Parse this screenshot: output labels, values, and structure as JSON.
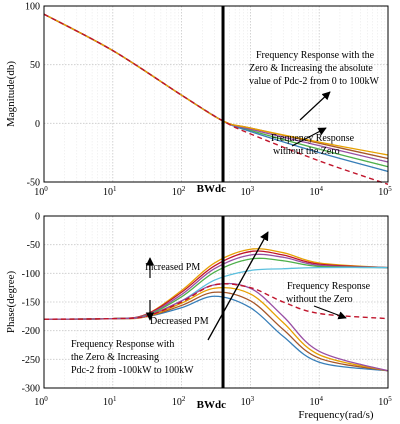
{
  "chart_data": [
    {
      "type": "line",
      "x_scale": "log",
      "xlim": [
        1,
        100000
      ],
      "ylim": [
        -50,
        100
      ],
      "ylabel": "Magnitude(db)",
      "xlabel": "",
      "grid": true,
      "xticks": [
        "10^0",
        "10^1",
        "10^2",
        "10^3",
        "10^4",
        "10^5"
      ],
      "yticks": [
        100,
        50,
        0,
        -50
      ],
      "marker_label": "BWdc",
      "marker_x": 400,
      "annotations": [
        "Frequency Response with the",
        "Zero & Increasing the absolute",
        "value of Pdc-2 from 0 to 100kW",
        "Frequency Response",
        "without the Zero"
      ],
      "series": [
        {
          "style": "solid",
          "color": "#4daf4a",
          "x": [
            1,
            10,
            100,
            400,
            1000,
            10000,
            100000
          ],
          "y": [
            93,
            62,
            24,
            2,
            -6,
            -22,
            -37
          ]
        },
        {
          "style": "solid",
          "color": "#377eb8",
          "x": [
            1,
            10,
            100,
            400,
            1000,
            10000,
            100000
          ],
          "y": [
            93,
            62,
            24,
            2,
            -7,
            -25,
            -41
          ]
        },
        {
          "style": "solid",
          "color": "#984ea3",
          "x": [
            1,
            10,
            100,
            400,
            1000,
            10000,
            100000
          ],
          "y": [
            93,
            62,
            24,
            2,
            -5,
            -19,
            -33
          ]
        },
        {
          "style": "solid",
          "color": "#a65628",
          "x": [
            1,
            10,
            100,
            400,
            1000,
            10000,
            100000
          ],
          "y": [
            93,
            62,
            24,
            2,
            -4,
            -17,
            -30
          ]
        },
        {
          "style": "solid",
          "color": "#e6a000",
          "x": [
            1,
            10,
            100,
            400,
            1000,
            10000,
            100000
          ],
          "y": [
            93,
            62,
            24,
            2,
            -4,
            -16,
            -27
          ]
        },
        {
          "style": "dashed",
          "color": "#c0142b",
          "x": [
            1,
            10,
            100,
            400,
            1000,
            10000,
            100000
          ],
          "y": [
            93,
            62,
            24,
            2,
            -9,
            -32,
            -52
          ]
        }
      ]
    },
    {
      "type": "line",
      "x_scale": "log",
      "xlim": [
        1,
        100000
      ],
      "ylim": [
        -300,
        0
      ],
      "ylabel": "Phase(degree)",
      "xlabel": "Frequency(rad/s)",
      "grid": true,
      "xticks": [
        "10^0",
        "10^1",
        "10^2",
        "10^3",
        "10^4",
        "10^5"
      ],
      "yticks": [
        0,
        -50,
        -100,
        -150,
        -200,
        -250,
        -300
      ],
      "marker_label": "BWdc",
      "marker_x": 400,
      "annotations": [
        "Increased PM",
        "Decreased PM",
        "Frequency Response",
        "without the Zero",
        "Frequency Response with",
        "the Zero & Increasing",
        "Pdc-2 from -100kW to 100kW"
      ],
      "series": [
        {
          "style": "solid",
          "color": "#e6a000",
          "x": [
            1,
            10,
            30,
            100,
            300,
            1000,
            3000,
            10000,
            100000
          ],
          "y": [
            -180,
            -179,
            -172,
            -130,
            -82,
            -58,
            -64,
            -82,
            -90
          ]
        },
        {
          "style": "solid",
          "color": "#c0142b",
          "x": [
            1,
            10,
            30,
            100,
            300,
            1000,
            3000,
            10000,
            100000
          ],
          "y": [
            -180,
            -179,
            -172,
            -133,
            -87,
            -62,
            -68,
            -84,
            -90
          ]
        },
        {
          "style": "solid",
          "color": "#984ea3",
          "x": [
            1,
            10,
            30,
            100,
            300,
            1000,
            3000,
            10000,
            100000
          ],
          "y": [
            -180,
            -179,
            -173,
            -137,
            -92,
            -68,
            -72,
            -86,
            -90
          ]
        },
        {
          "style": "solid",
          "color": "#4daf4a",
          "x": [
            1,
            10,
            30,
            100,
            300,
            1000,
            3000,
            10000,
            100000
          ],
          "y": [
            -180,
            -179,
            -174,
            -141,
            -98,
            -75,
            -78,
            -88,
            -90
          ]
        },
        {
          "style": "solid",
          "color": "#5bc0de",
          "x": [
            1,
            10,
            30,
            100,
            300,
            1000,
            3000,
            10000,
            100000
          ],
          "y": [
            -180,
            -179,
            -175,
            -148,
            -112,
            -95,
            -92,
            -90,
            -90
          ]
        },
        {
          "style": "solid",
          "color": "#377eb8",
          "x": [
            1,
            10,
            30,
            100,
            300,
            1000,
            3000,
            10000,
            100000
          ],
          "y": [
            -180,
            -179,
            -176,
            -160,
            -140,
            -160,
            -210,
            -255,
            -270
          ]
        },
        {
          "style": "solid",
          "color": "#a65628",
          "x": [
            1,
            10,
            30,
            100,
            300,
            1000,
            3000,
            10000,
            100000
          ],
          "y": [
            -180,
            -179,
            -176,
            -156,
            -133,
            -148,
            -198,
            -248,
            -270
          ]
        },
        {
          "style": "solid",
          "color": "#e6a000",
          "x": [
            1,
            10,
            30,
            100,
            300,
            1000,
            3000,
            10000,
            100000
          ],
          "y": [
            -180,
            -179,
            -176,
            -152,
            -126,
            -136,
            -186,
            -242,
            -270
          ]
        },
        {
          "style": "solid",
          "color": "#984ea3",
          "x": [
            1,
            10,
            30,
            100,
            300,
            1000,
            3000,
            10000,
            100000
          ],
          "y": [
            -180,
            -179,
            -175,
            -148,
            -120,
            -126,
            -175,
            -236,
            -270
          ]
        },
        {
          "style": "dashed",
          "color": "#c0142b",
          "x": [
            1,
            10,
            30,
            100,
            300,
            1000,
            3000,
            10000,
            100000
          ],
          "y": [
            -180,
            -179,
            -175,
            -150,
            -120,
            -125,
            -150,
            -170,
            -179
          ]
        }
      ]
    }
  ]
}
